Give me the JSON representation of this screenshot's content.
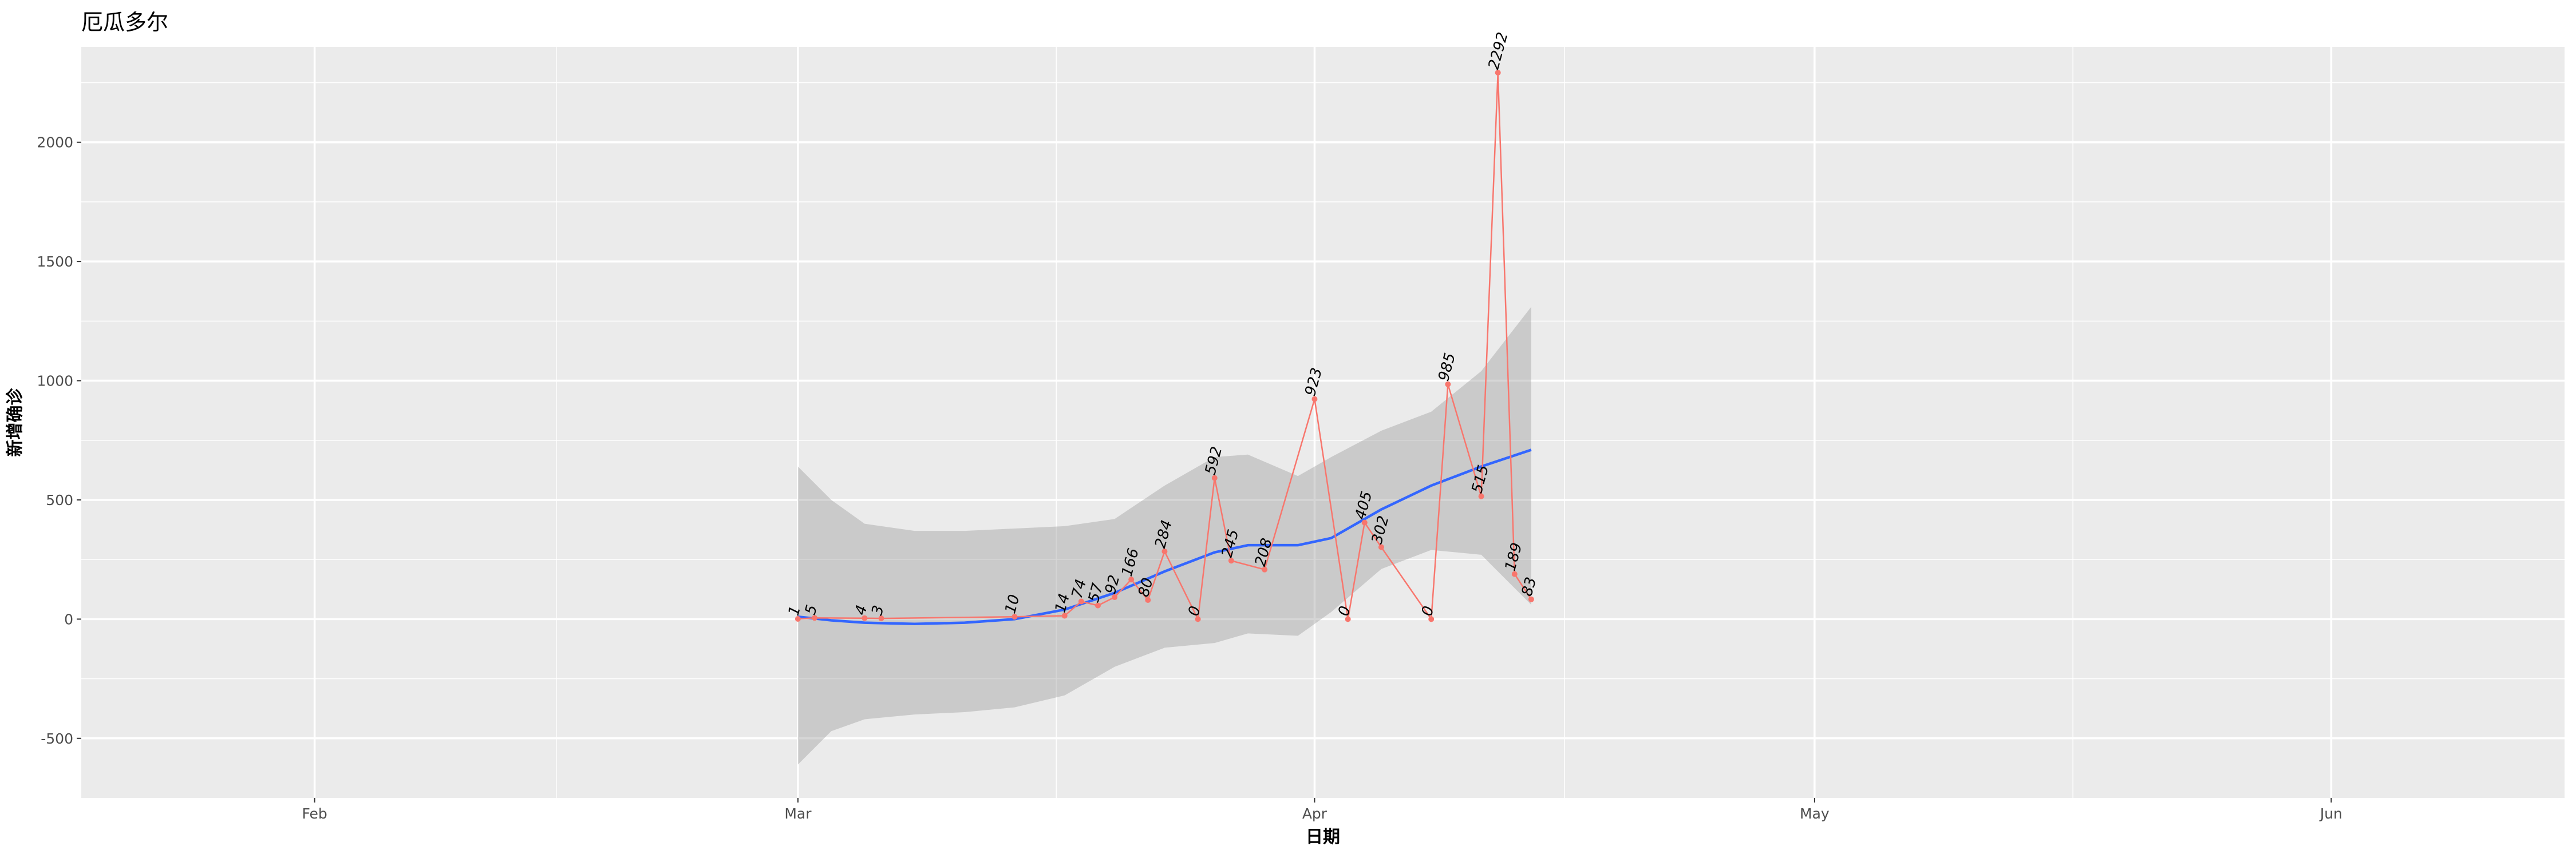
{
  "chart_data": {
    "type": "line",
    "title": "厄瓜多尔",
    "xlabel": "日期",
    "ylabel": "新增确诊",
    "x_tick_labels": [
      "Feb",
      "Mar",
      "Apr",
      "May",
      "Jun"
    ],
    "x_tick_dates": [
      "2020-02-01",
      "2020-03-01",
      "2020-04-01",
      "2020-05-01",
      "2020-06-01"
    ],
    "xlim": [
      "2020-01-18",
      "2020-06-15"
    ],
    "y_ticks": [
      -500,
      0,
      500,
      1000,
      1500,
      2000
    ],
    "ylim": [
      -750,
      2400
    ],
    "grid": true,
    "series": [
      {
        "line_color": "#F8766D",
        "points": [
          {
            "x": "2020-03-01",
            "y": 1
          },
          {
            "x": "2020-03-02",
            "y": 5
          },
          {
            "x": "2020-03-05",
            "y": 4
          },
          {
            "x": "2020-03-06",
            "y": 3
          },
          {
            "x": "2020-03-14",
            "y": 10
          },
          {
            "x": "2020-03-17",
            "y": 14
          },
          {
            "x": "2020-03-18",
            "y": 74
          },
          {
            "x": "2020-03-19",
            "y": 57
          },
          {
            "x": "2020-03-20",
            "y": 92
          },
          {
            "x": "2020-03-21",
            "y": 166
          },
          {
            "x": "2020-03-22",
            "y": 80
          },
          {
            "x": "2020-03-23",
            "y": 284
          },
          {
            "x": "2020-03-25",
            "y": 0
          },
          {
            "x": "2020-03-26",
            "y": 592
          },
          {
            "x": "2020-03-27",
            "y": 245
          },
          {
            "x": "2020-03-29",
            "y": 208
          },
          {
            "x": "2020-04-01",
            "y": 923
          },
          {
            "x": "2020-04-03",
            "y": 0
          },
          {
            "x": "2020-04-04",
            "y": 405
          },
          {
            "x": "2020-04-05",
            "y": 302
          },
          {
            "x": "2020-04-08",
            "y": 0
          },
          {
            "x": "2020-04-09",
            "y": 985
          },
          {
            "x": "2020-04-11",
            "y": 515
          },
          {
            "x": "2020-04-12",
            "y": 2292
          },
          {
            "x": "2020-04-13",
            "y": 189
          },
          {
            "x": "2020-04-14",
            "y": 83
          }
        ]
      }
    ],
    "smooth": {
      "line_color": "#3366FF",
      "band_color": "#999999",
      "points": [
        {
          "x": "2020-03-01",
          "y": 10,
          "lower": -610,
          "upper": 640
        },
        {
          "x": "2020-03-03",
          "y": -5,
          "lower": -470,
          "upper": 500
        },
        {
          "x": "2020-03-05",
          "y": -15,
          "lower": -420,
          "upper": 400
        },
        {
          "x": "2020-03-08",
          "y": -20,
          "lower": -400,
          "upper": 370
        },
        {
          "x": "2020-03-11",
          "y": -15,
          "lower": -390,
          "upper": 370
        },
        {
          "x": "2020-03-14",
          "y": 0,
          "lower": -370,
          "upper": 380
        },
        {
          "x": "2020-03-17",
          "y": 40,
          "lower": -320,
          "upper": 390
        },
        {
          "x": "2020-03-20",
          "y": 110,
          "lower": -200,
          "upper": 420
        },
        {
          "x": "2020-03-23",
          "y": 200,
          "lower": -120,
          "upper": 560
        },
        {
          "x": "2020-03-26",
          "y": 280,
          "lower": -100,
          "upper": 680
        },
        {
          "x": "2020-03-28",
          "y": 310,
          "lower": -60,
          "upper": 690
        },
        {
          "x": "2020-03-31",
          "y": 310,
          "lower": -70,
          "upper": 600
        },
        {
          "x": "2020-04-02",
          "y": 340,
          "lower": 30,
          "upper": 680
        },
        {
          "x": "2020-04-05",
          "y": 460,
          "lower": 210,
          "upper": 790
        },
        {
          "x": "2020-04-08",
          "y": 560,
          "lower": 290,
          "upper": 870
        },
        {
          "x": "2020-04-11",
          "y": 640,
          "lower": 270,
          "upper": 1040
        },
        {
          "x": "2020-04-14",
          "y": 710,
          "lower": 60,
          "upper": 1310
        }
      ]
    }
  }
}
